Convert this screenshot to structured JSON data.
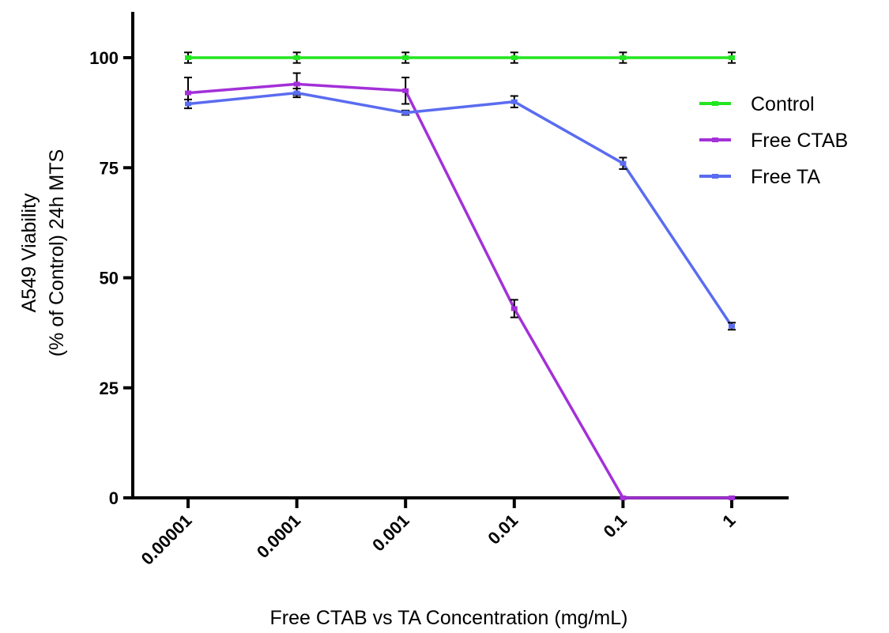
{
  "chart_data": {
    "type": "line",
    "xlabel": "Free CTAB vs TA Concentration (mg/mL)",
    "ylabel_lines": [
      "A549 Viability",
      "(% of Control) 24h MTS"
    ],
    "categories": [
      "0.00001",
      "0.0001",
      "0.001",
      "0.01",
      "0.1",
      "1"
    ],
    "x_scale": "log",
    "ylim": [
      0,
      100
    ],
    "yticks": [
      0,
      25,
      50,
      75,
      100
    ],
    "ytick_labels": [
      "0",
      "25",
      "50",
      "75",
      "100"
    ],
    "grid": false,
    "legend_position": "right",
    "series": [
      {
        "name": "Control",
        "color": "#22e61f",
        "values": [
          100,
          100,
          100,
          100,
          100,
          100
        ],
        "errors": [
          1.2,
          1.2,
          1.2,
          1.2,
          1.2,
          1.2
        ]
      },
      {
        "name": "Free CTAB",
        "color": "#a330d8",
        "values": [
          92,
          94,
          92.5,
          43,
          0,
          0
        ],
        "errors": [
          3.5,
          2.5,
          3.0,
          2.0,
          0,
          0
        ]
      },
      {
        "name": "Free TA",
        "color": "#5a6cf0",
        "values": [
          89.5,
          92,
          87.5,
          90,
          76,
          39
        ],
        "errors": [
          1.0,
          1.0,
          0.5,
          1.3,
          1.3,
          0.8
        ]
      }
    ]
  }
}
